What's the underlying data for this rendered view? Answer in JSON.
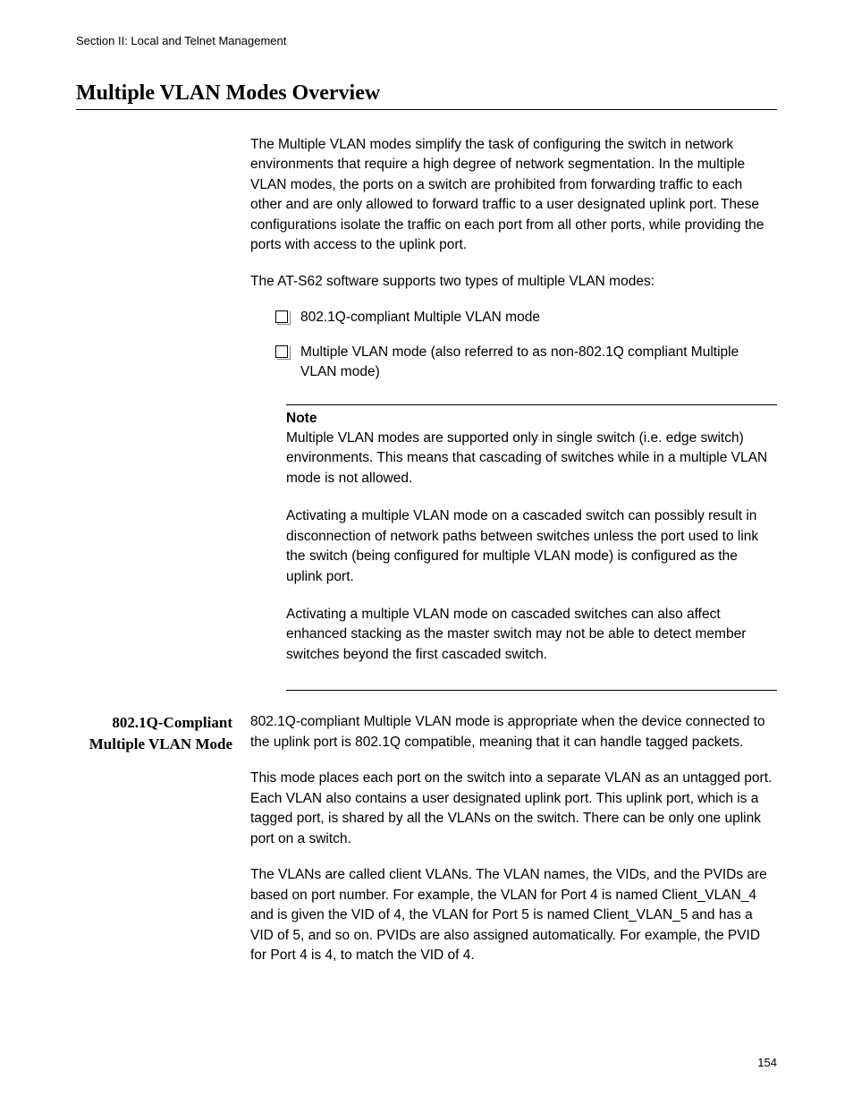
{
  "header": {
    "section_label": "Section II: Local and Telnet Management"
  },
  "title": "Multiple VLAN Modes Overview",
  "intro": {
    "para1": "The Multiple VLAN modes simplify the task of configuring the switch in network environments that require a high degree of network segmentation. In the multiple VLAN modes, the ports on a switch are prohibited from forwarding traffic to each other and are only allowed to forward traffic to a user designated uplink port. These configurations isolate the traffic on each port from all other ports, while providing the ports with access to the uplink port.",
    "para2": "The AT-S62 software supports two types of multiple VLAN modes:",
    "bullet1": "802.1Q-compliant Multiple VLAN mode",
    "bullet2": "Multiple VLAN mode (also referred to as non-802.1Q compliant Multiple VLAN mode)"
  },
  "note": {
    "heading": "Note",
    "para1": "Multiple VLAN modes are supported only in single switch (i.e. edge switch) environments. This means that cascading of switches while in a multiple VLAN mode is not allowed.",
    "para2": "Activating a multiple VLAN mode on a cascaded switch can possibly result in disconnection of network paths between switches unless the port used to link the switch (being configured for multiple VLAN mode) is configured as the uplink port.",
    "para3": "Activating a multiple VLAN mode on cascaded switches can also affect enhanced stacking as the master switch may not be able to detect member switches beyond the first cascaded switch."
  },
  "section": {
    "sidebar_heading": "802.1Q-Compliant Multiple VLAN Mode",
    "para1": "802.1Q-compliant Multiple VLAN mode is appropriate when the device connected to the uplink port is 802.1Q compatible, meaning that it can handle tagged packets.",
    "para2": "This mode places each port on the switch into a separate VLAN as an untagged port. Each VLAN also contains a user designated uplink port. This uplink port, which is a tagged port, is shared by all the VLANs on the switch. There can be only one uplink port on a switch.",
    "para3": "The VLANs are called client VLANs. The VLAN names, the VIDs, and the PVIDs are based on port number. For example, the VLAN for Port 4 is named Client_VLAN_4 and is given the VID of 4, the VLAN for Port 5 is named Client_VLAN_5 and has a VID of 5, and so on. PVIDs are also assigned automatically. For example, the PVID for Port 4 is 4, to match the VID of 4."
  },
  "page_number": "154"
}
